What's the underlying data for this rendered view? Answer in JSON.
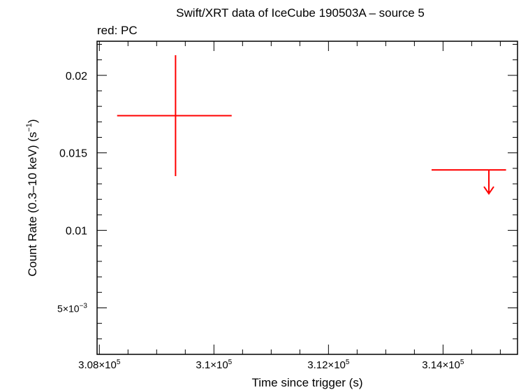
{
  "chart_data": {
    "type": "scatter",
    "title": "Swift/XRT data of IceCube 190503A – source 5",
    "subtitle": "red: PC",
    "xlabel": "Time since trigger (s)",
    "ylabel": "Count Rate (0.3–10 keV) (s",
    "ylabel_sup": "−1",
    "ylabel_end": ")",
    "xlim": [
      307960,
      315300
    ],
    "ylim": [
      0.002,
      0.0222
    ],
    "x_ticks": [
      {
        "value": 308000,
        "mant": "3.08×10",
        "exp": "5"
      },
      {
        "value": 310000,
        "mant": "3.1×10",
        "exp": "5"
      },
      {
        "value": 312000,
        "mant": "3.12×10",
        "exp": "5"
      },
      {
        "value": 314000,
        "mant": "3.14×10",
        "exp": "5"
      }
    ],
    "y_ticks": [
      {
        "value": 0.005,
        "mant": "5×10",
        "exp": "−3"
      },
      {
        "value": 0.01,
        "mant": "0.01",
        "exp": ""
      },
      {
        "value": 0.015,
        "mant": "0.015",
        "exp": ""
      },
      {
        "value": 0.02,
        "mant": "0.02",
        "exp": ""
      }
    ],
    "series": [
      {
        "name": "PC",
        "color": "#ff0000",
        "points": [
          {
            "x": 309330,
            "xerr_minus": 1020,
            "xerr_plus": 980,
            "y": 0.0174,
            "yerr_minus": 0.0039,
            "yerr_plus": 0.0039,
            "upper_limit": false
          }
        ],
        "upper_limits": [
          {
            "x": 314800,
            "xerr_minus": 1000,
            "xerr_plus": 300,
            "y": 0.0139
          }
        ]
      }
    ],
    "grid": false
  }
}
